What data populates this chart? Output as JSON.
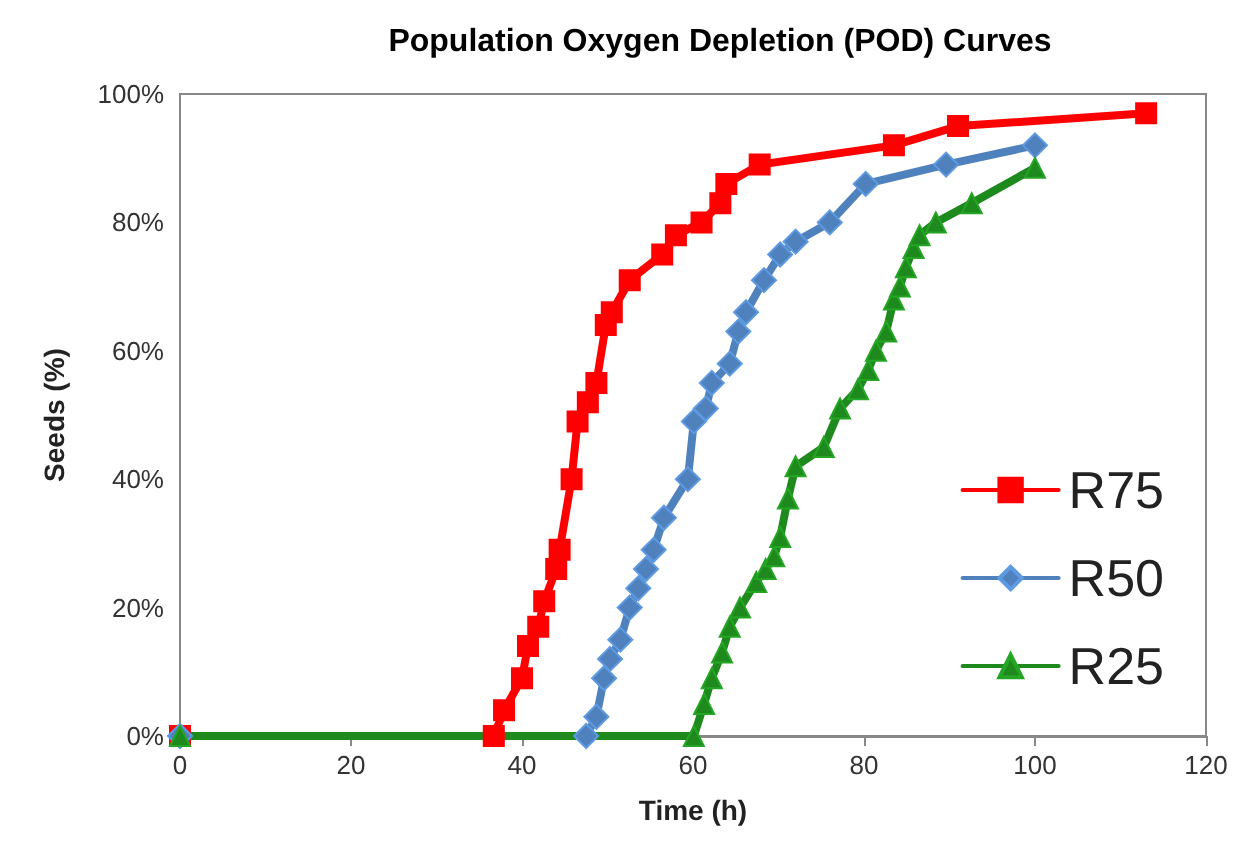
{
  "chart_data": {
    "type": "line",
    "title": "Population Oxygen Depletion (POD) Curves",
    "xlabel": "Time (h)",
    "ylabel": "Seeds (%)",
    "xlim": [
      0,
      120
    ],
    "xticks": [
      0,
      20,
      40,
      60,
      80,
      100,
      120
    ],
    "ylim": [
      0,
      100
    ],
    "yticks": [
      {
        "value": 0,
        "label": "0%"
      },
      {
        "value": 20,
        "label": "20%"
      },
      {
        "value": 40,
        "label": "40%"
      },
      {
        "value": 60,
        "label": "60%"
      },
      {
        "value": 80,
        "label": "80%"
      },
      {
        "value": 100,
        "label": "100%"
      }
    ],
    "grid": false,
    "legend": "bottom right",
    "line_style": "solid",
    "series": [
      {
        "name": "R75",
        "color": "#ff0000",
        "marker": "square",
        "x": [
          0,
          36.7,
          37.9,
          40,
          40.7,
          41.9,
          42.6,
          44,
          44.4,
          45.8,
          46.5,
          47.7,
          48.7,
          49.8,
          50.5,
          52.6,
          56.4,
          58,
          61,
          63.2,
          63.9,
          67.8,
          83.5,
          91,
          113
        ],
        "values": [
          0,
          0,
          4,
          9,
          14,
          17,
          21,
          26,
          29,
          40,
          49,
          52,
          55,
          64,
          66,
          71,
          75,
          78,
          80,
          83,
          86,
          89,
          92,
          95,
          97
        ]
      },
      {
        "name": "R50",
        "color": "#4f81bd",
        "marker": "diamond",
        "x": [
          0,
          47.5,
          48.7,
          49.6,
          50.3,
          51.5,
          52.6,
          53.6,
          54.5,
          55.4,
          56.6,
          59.4,
          60.1,
          61.5,
          62.2,
          64.3,
          65.3,
          66.2,
          68.3,
          70.2,
          72,
          76,
          80.2,
          89.6,
          100
        ],
        "values": [
          0,
          0,
          3,
          9,
          12,
          15,
          20,
          23,
          26,
          29,
          34,
          40,
          49,
          51,
          55,
          58,
          63,
          66,
          71,
          75,
          77,
          80,
          86,
          89,
          92
        ]
      },
      {
        "name": "R25",
        "color": "#1e8a1e",
        "marker": "triangle",
        "x": [
          0,
          60.1,
          61.3,
          62.2,
          63.4,
          64.3,
          65.5,
          67.4,
          68.5,
          69.5,
          70.2,
          71.1,
          72,
          75.3,
          77.2,
          79.3,
          80.5,
          81.4,
          82.6,
          83.5,
          84.2,
          84.9,
          85.8,
          86.5,
          88.4,
          92.6,
          100
        ],
        "values": [
          0,
          0,
          5,
          9,
          13,
          17,
          20,
          24,
          26,
          28,
          31,
          37,
          42,
          45,
          51,
          54,
          57,
          60,
          63,
          68,
          70,
          73,
          76,
          78,
          80,
          83,
          88.5
        ]
      }
    ]
  }
}
